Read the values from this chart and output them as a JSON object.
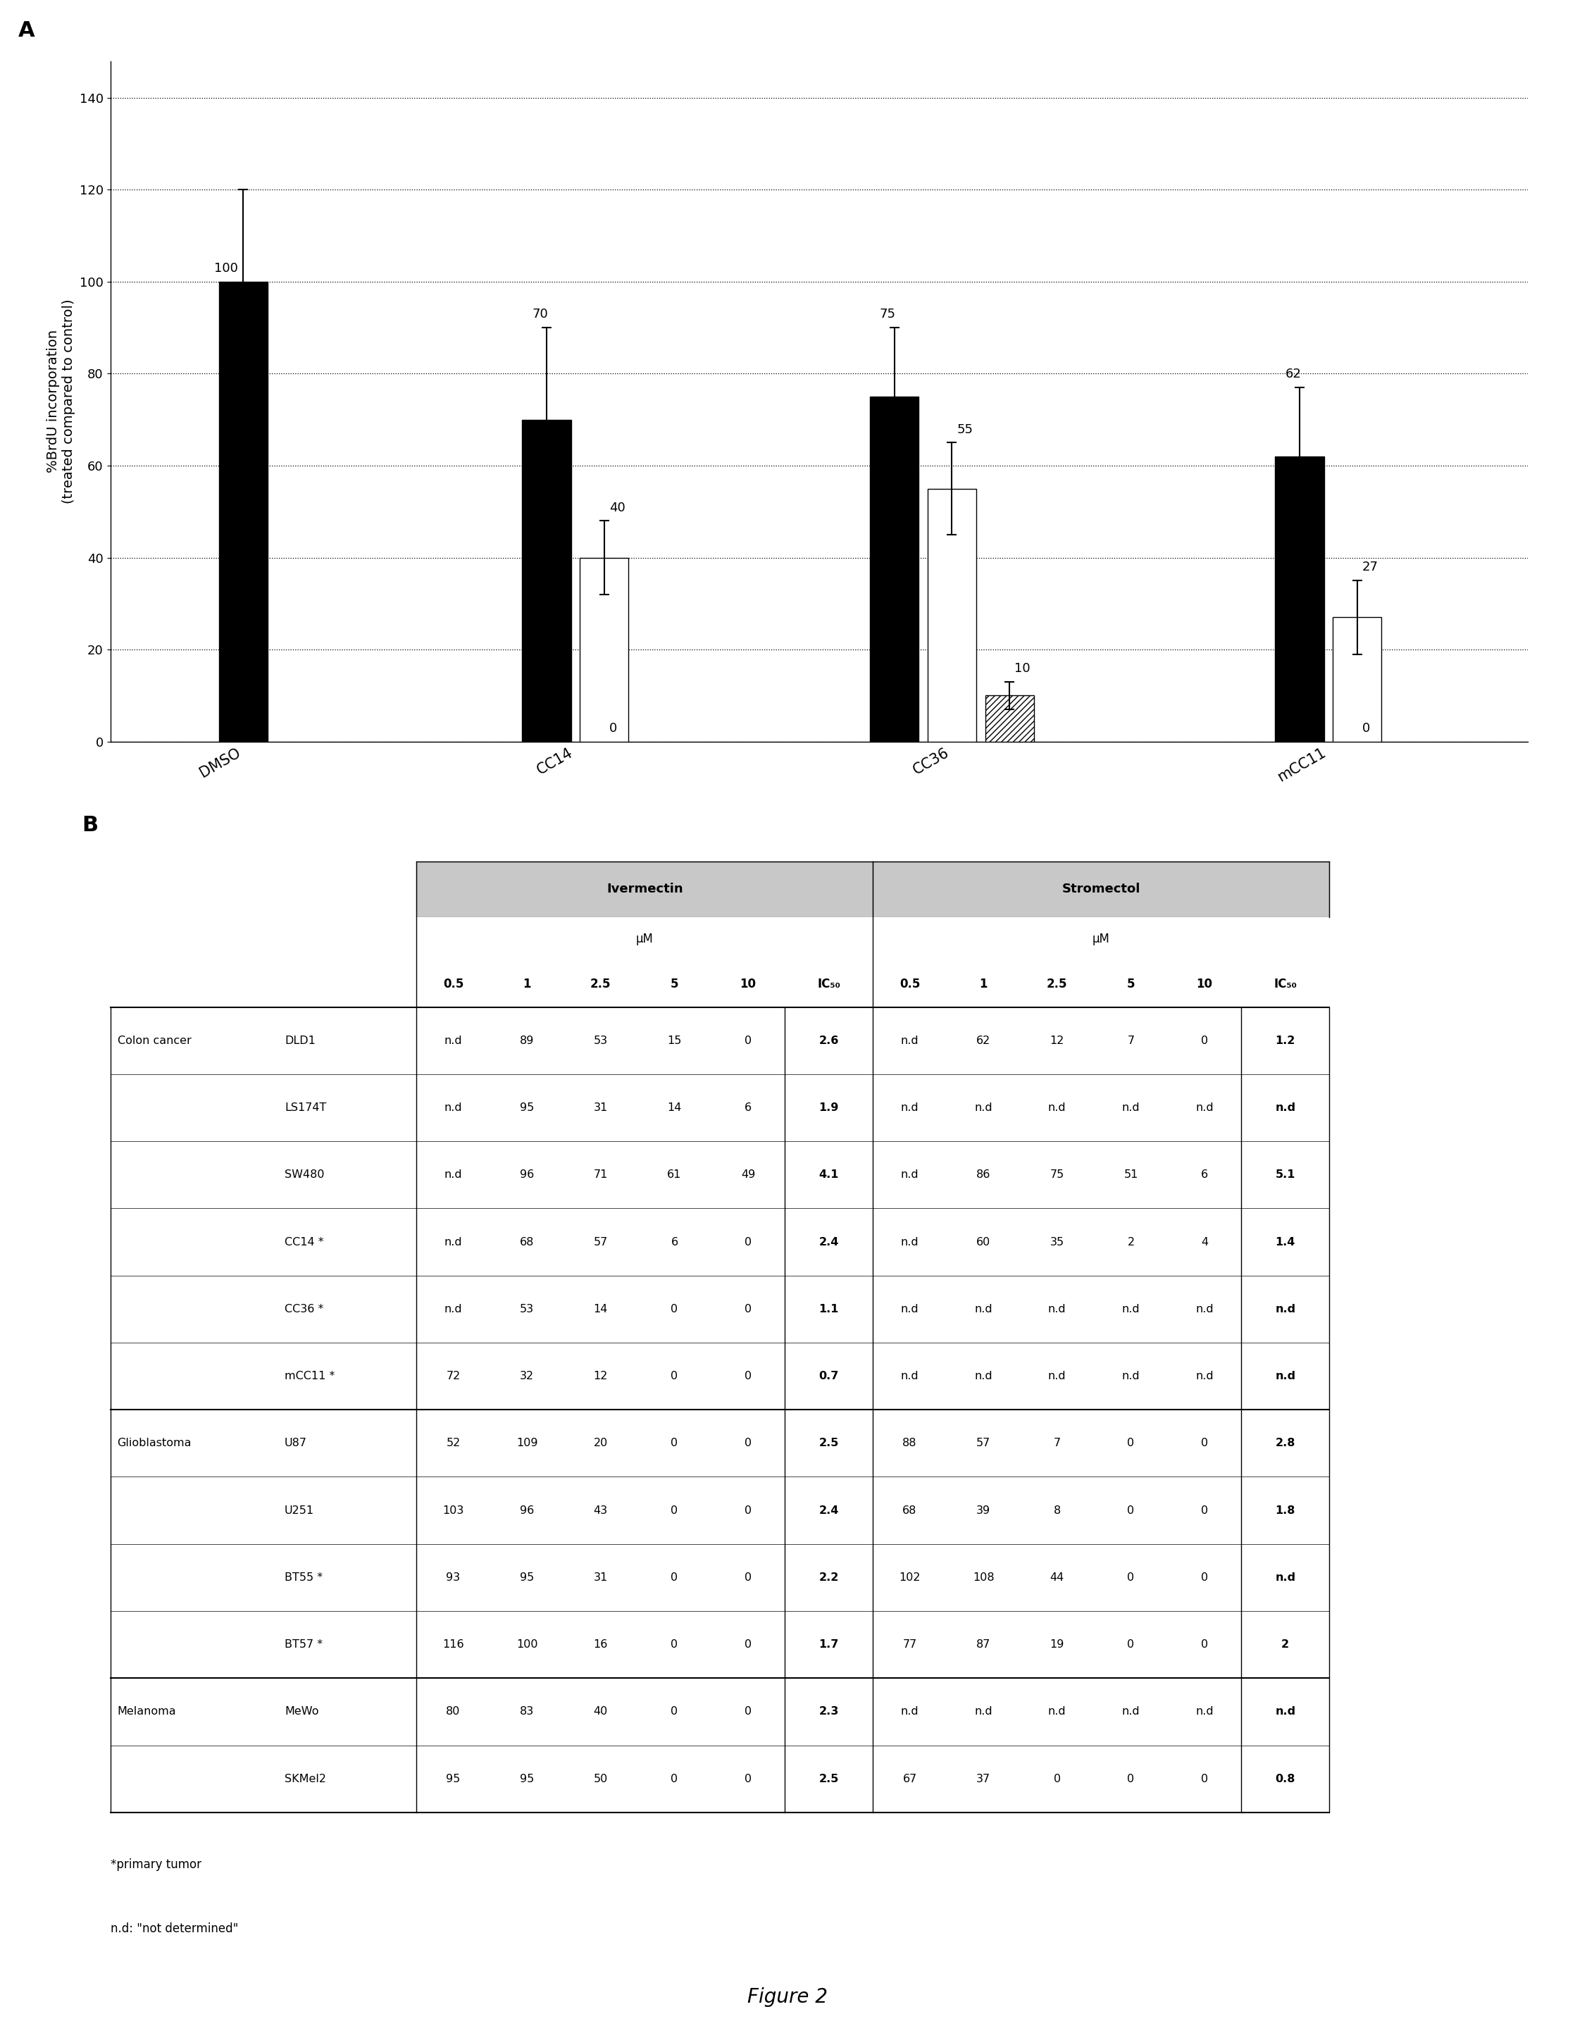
{
  "panel_A_label": "A",
  "panel_B_label": "B",
  "bar_groups": [
    "DMSO",
    "CC14",
    "CC36",
    "mCC11"
  ],
  "bar_black_values": [
    100,
    70,
    75,
    62
  ],
  "bar_white_values": [
    0,
    40,
    55,
    27
  ],
  "bar_hatched_values": [
    0,
    0,
    10,
    0
  ],
  "bar_black_errors": [
    20,
    20,
    15,
    15
  ],
  "bar_white_errors": [
    0,
    8,
    10,
    8
  ],
  "bar_hatched_errors": [
    0,
    0,
    3,
    0
  ],
  "ylabel": "%BrdU incorporation\n(treated compared to control)",
  "ylim": [
    0,
    140
  ],
  "yticks": [
    0,
    20,
    40,
    60,
    80,
    100,
    120,
    140
  ],
  "figure_caption": "Figure 2",
  "table_data": [
    [
      "Colon cancer",
      "DLD1",
      "n.d",
      "89",
      "53",
      "15",
      "0",
      "2.6",
      "n.d",
      "62",
      "12",
      "7",
      "0",
      "1.2"
    ],
    [
      "",
      "LS174T",
      "n.d",
      "95",
      "31",
      "14",
      "6",
      "1.9",
      "n.d",
      "n.d",
      "n.d",
      "n.d",
      "n.d",
      "n.d"
    ],
    [
      "",
      "SW480",
      "n.d",
      "96",
      "71",
      "61",
      "49",
      "4.1",
      "n.d",
      "86",
      "75",
      "51",
      "6",
      "5.1"
    ],
    [
      "",
      "CC14 *",
      "n.d",
      "68",
      "57",
      "6",
      "0",
      "2.4",
      "n.d",
      "60",
      "35",
      "2",
      "4",
      "1.4"
    ],
    [
      "",
      "CC36 *",
      "n.d",
      "53",
      "14",
      "0",
      "0",
      "1.1",
      "n.d",
      "n.d",
      "n.d",
      "n.d",
      "n.d",
      "n.d"
    ],
    [
      "",
      "mCC11 *",
      "72",
      "32",
      "12",
      "0",
      "0",
      "0.7",
      "n.d",
      "n.d",
      "n.d",
      "n.d",
      "n.d",
      "n.d"
    ],
    [
      "Glioblastoma",
      "U87",
      "52",
      "109",
      "20",
      "0",
      "0",
      "2.5",
      "88",
      "57",
      "7",
      "0",
      "0",
      "2.8"
    ],
    [
      "",
      "U251",
      "103",
      "96",
      "43",
      "0",
      "0",
      "2.4",
      "68",
      "39",
      "8",
      "0",
      "0",
      "1.8"
    ],
    [
      "",
      "BT55 *",
      "93",
      "95",
      "31",
      "0",
      "0",
      "2.2",
      "102",
      "108",
      "44",
      "0",
      "0",
      "n.d"
    ],
    [
      "",
      "BT57 *",
      "116",
      "100",
      "16",
      "0",
      "0",
      "1.7",
      "77",
      "87",
      "19",
      "0",
      "0",
      "2"
    ],
    [
      "Melanoma",
      "MeWo",
      "80",
      "83",
      "40",
      "0",
      "0",
      "2.3",
      "n.d",
      "n.d",
      "n.d",
      "n.d",
      "n.d",
      "n.d"
    ],
    [
      "",
      "SKMel2",
      "95",
      "95",
      "50",
      "0",
      "0",
      "2.5",
      "67",
      "37",
      "0",
      "0",
      "0",
      "0.8"
    ]
  ],
  "footnote1": "*primary tumor",
  "footnote2": "n.d: \"not determined\""
}
